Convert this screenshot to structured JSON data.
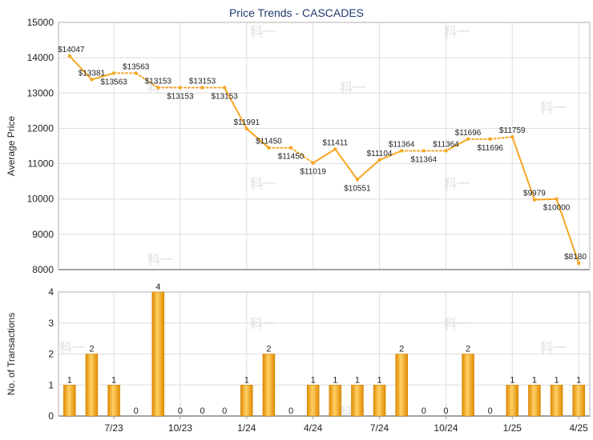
{
  "chart_data": [
    {
      "type": "line",
      "title": "Price Trends - CASCADES",
      "ylabel": "Average Price",
      "ylim": [
        8000,
        15000
      ],
      "yticks": [
        8000,
        9000,
        10000,
        11000,
        12000,
        13000,
        14000,
        15000
      ],
      "categories": [
        "5/23",
        "6/23",
        "7/23",
        "8/23",
        "9/23",
        "10/23",
        "11/23",
        "12/23",
        "1/24",
        "2/24",
        "3/24",
        "4/24",
        "5/24",
        "6/24",
        "7/24",
        "8/24",
        "9/24",
        "10/24",
        "11/24",
        "12/24",
        "1/25",
        "2/25",
        "3/25",
        "4/25"
      ],
      "series": [
        {
          "values": [
            14047,
            13381,
            13563,
            13563,
            13153,
            13153,
            13153,
            13153,
            11991,
            11450,
            11450,
            11019,
            11411,
            10551,
            11104,
            11364,
            11364,
            11364,
            11696,
            11696,
            11759,
            9979,
            10000,
            8180
          ],
          "interpolated": [
            false,
            false,
            false,
            true,
            false,
            true,
            true,
            false,
            false,
            false,
            true,
            false,
            false,
            false,
            false,
            false,
            true,
            false,
            false,
            true,
            false,
            false,
            false,
            false
          ],
          "labels": [
            "$14047",
            "$13381",
            "$13563",
            "$13563",
            "$13153",
            "$13153",
            "$13153",
            "$13153",
            "$11991",
            "$11450",
            "$11450",
            "$11019",
            "$11411",
            "$10551",
            "$11104",
            "$11364",
            "$11364",
            "$11364",
            "$11696",
            "$11696",
            "$11759",
            "$9979",
            "$10000",
            "$8180"
          ],
          "label_pos": [
            "above",
            "above",
            "below",
            "above",
            "above",
            "below",
            "above",
            "below",
            "above",
            "above",
            "below",
            "below",
            "above",
            "below",
            "above",
            "above",
            "below",
            "above",
            "above",
            "below",
            "above",
            "above",
            "below",
            "above"
          ]
        }
      ],
      "color": "#f5a623",
      "grid": true
    },
    {
      "type": "bar",
      "ylabel": "No. of Transactions",
      "ylim": [
        0,
        4
      ],
      "yticks": [
        0,
        1,
        2,
        3,
        4
      ],
      "categories": [
        "5/23",
        "6/23",
        "7/23",
        "8/23",
        "9/23",
        "10/23",
        "11/23",
        "12/23",
        "1/24",
        "2/24",
        "3/24",
        "4/24",
        "5/24",
        "6/24",
        "7/24",
        "8/24",
        "9/24",
        "10/24",
        "11/24",
        "12/24",
        "1/25",
        "2/25",
        "3/25",
        "4/25"
      ],
      "values": [
        1,
        2,
        1,
        0,
        4,
        0,
        0,
        0,
        1,
        2,
        0,
        1,
        1,
        1,
        1,
        2,
        0,
        0,
        2,
        0,
        1,
        1,
        1,
        1
      ],
      "xtick_labels": [
        "7/23",
        "10/23",
        "1/24",
        "4/24",
        "7/24",
        "10/24",
        "1/25",
        "4/25"
      ],
      "xtick_index": [
        2,
        5,
        8,
        11,
        14,
        17,
        20,
        23
      ],
      "color": "#f5a623",
      "grid": true
    }
  ],
  "watermark": "科一"
}
